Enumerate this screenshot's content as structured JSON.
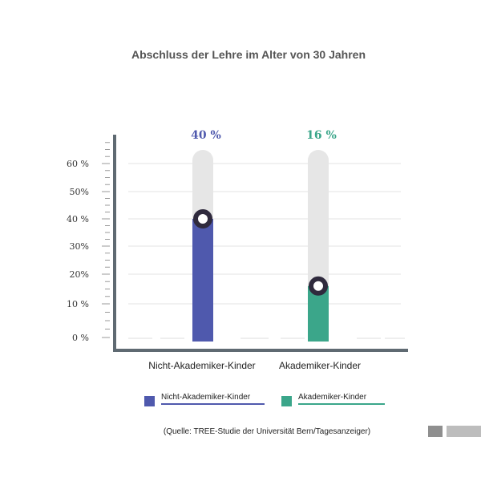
{
  "chart_data": {
    "type": "bar",
    "title": "Abschluss der Lehre im Alter von 30 Jahren",
    "categories": [
      "Nicht-Akademiker-Kinder",
      "Akademiker-Kinder"
    ],
    "values": [
      40,
      16
    ],
    "data_labels": [
      "40 %",
      "16 %"
    ],
    "y_ticks": [
      {
        "value": 0,
        "label": "0 %"
      },
      {
        "value": 10,
        "label": "10 %"
      },
      {
        "value": 20,
        "label": "20%"
      },
      {
        "value": 30,
        "label": "30%"
      },
      {
        "value": 40,
        "label": "40 %"
      },
      {
        "value": 50,
        "label": "50%"
      },
      {
        "value": 60,
        "label": "60 %"
      }
    ],
    "ylim": [
      0,
      68
    ],
    "grid": true,
    "legend": {
      "position": "bottom",
      "entries": [
        "Nicht-Akademiker-Kinder",
        "Akademiker-Kinder"
      ]
    },
    "colors": [
      "#4f59ad",
      "#3ba68a"
    ],
    "track_color": "#e6e6e6",
    "source": "(Quelle: TREE-Studie der Universität Bern/Tagesanzeiger)"
  }
}
